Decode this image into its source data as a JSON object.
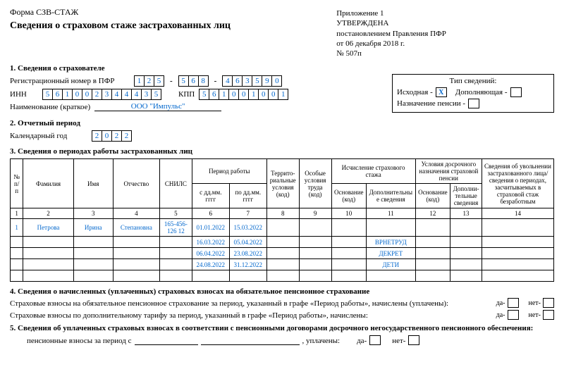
{
  "header": {
    "form_name": "Форма СЗВ-СТАЖ",
    "title": "Сведения о страховом стаже застрахованных лиц",
    "appendix": "Приложение 1",
    "approved": "УТВЕРЖДЕНА",
    "decree1": "постановлением Правления ПФР",
    "decree2": "от 06 декабря 2018 г.",
    "decree3": "№ 507п"
  },
  "s1": {
    "h": "1. Сведения о страхователе",
    "reg_label": "Регистрационный номер в ПФР",
    "reg1": [
      "1",
      "2",
      "5"
    ],
    "reg2": [
      "5",
      "6",
      "8"
    ],
    "reg3": [
      "4",
      "6",
      "3",
      "5",
      "9",
      "0"
    ],
    "inn_label": "ИНН",
    "inn": [
      "5",
      "6",
      "1",
      "0",
      "0",
      "2",
      "3",
      "4",
      "4",
      "4",
      "3",
      "5"
    ],
    "kpp_label": "КПП",
    "kpp": [
      "5",
      "6",
      "1",
      "0",
      "0",
      "1",
      "0",
      "0",
      "1"
    ],
    "name_label": "Наименование (краткое)",
    "name_val": "ООО \"Импульс\""
  },
  "type": {
    "h": "Тип сведений:",
    "initial": "Исходная -",
    "initial_mark": "Х",
    "suppl": "Дополняющая -",
    "pension": "Назначение пенсии -"
  },
  "s2": {
    "h": "2. Отчетный период",
    "year_label": "Календарный год",
    "year": [
      "2",
      "0",
      "2",
      "2"
    ]
  },
  "s3": {
    "h": "3. Сведения о периодах работы застрахованных лиц",
    "th": {
      "n": "№\nп/п",
      "fam": "Фамилия",
      "name": "Имя",
      "patr": "Отчество",
      "snils": "СНИЛС",
      "period": "Период работы",
      "from": "с дд.мм. гггг",
      "to": "по дд.мм.\nгггг",
      "terr": "Террито-\nриальные\nусловия\n(код)",
      "special": "Особые\nусловия\nтруда (код)",
      "calc": "Исчисление страхового\nстажа",
      "basis": "Основание\n(код)",
      "addl": "Дополнительны\nе сведения",
      "early": "Условия досрочного\nназначения страховой\nпенсии",
      "early_basis": "Основание\n(код)",
      "early_addl": "Дополни-\nтельные\nсведения",
      "dismiss": "Сведения об увольнении\nзастрахованного\nлица/сведения о периодах,\nзасчитываемых в страховой\nстаж безработным"
    },
    "nums": [
      "1",
      "2",
      "3",
      "4",
      "5",
      "6",
      "7",
      "8",
      "9",
      "10",
      "11",
      "12",
      "13",
      "14"
    ],
    "rows": [
      {
        "n": "1",
        "fam": "Петрова",
        "name": "Ирина",
        "patr": "Степановна",
        "snils": "165-456-\n126 12",
        "from": "01.01.2022",
        "to": "15.03.2022",
        "addl": ""
      },
      {
        "from": "16.03.2022",
        "to": "05.04.2022",
        "addl": "ВРНЕТРУД"
      },
      {
        "from": "06.04.2022",
        "to": "23.08.2022",
        "addl": "ДЕКРЕТ"
      },
      {
        "from": "24.08.2022",
        "to": "31.12.2022",
        "addl": "ДЕТИ"
      }
    ]
  },
  "s4": {
    "h": "4. Сведения о начисленных (уплаченных) страховых взносах на обязательное пенсионное страхование",
    "l1": "Страховые взносы на обязательное пенсионное страхование за период, указанный в графе «Период работы», начислены (уплачены):",
    "l2": "Страховые взносы по дополнительному тарифу за период, указанный в графе «Период работы», начислены:",
    "yes": "да-",
    "no": "нет-"
  },
  "s5": {
    "h": "5. Сведения об уплаченных страховых взносах в соответствии с пенсионными договорами досрочного негосударственного пенсионного обеспечения:",
    "line": "пенсионные взносы за период с",
    "paid": ", уплачены:",
    "yes": "да-",
    "no": "нет-"
  }
}
